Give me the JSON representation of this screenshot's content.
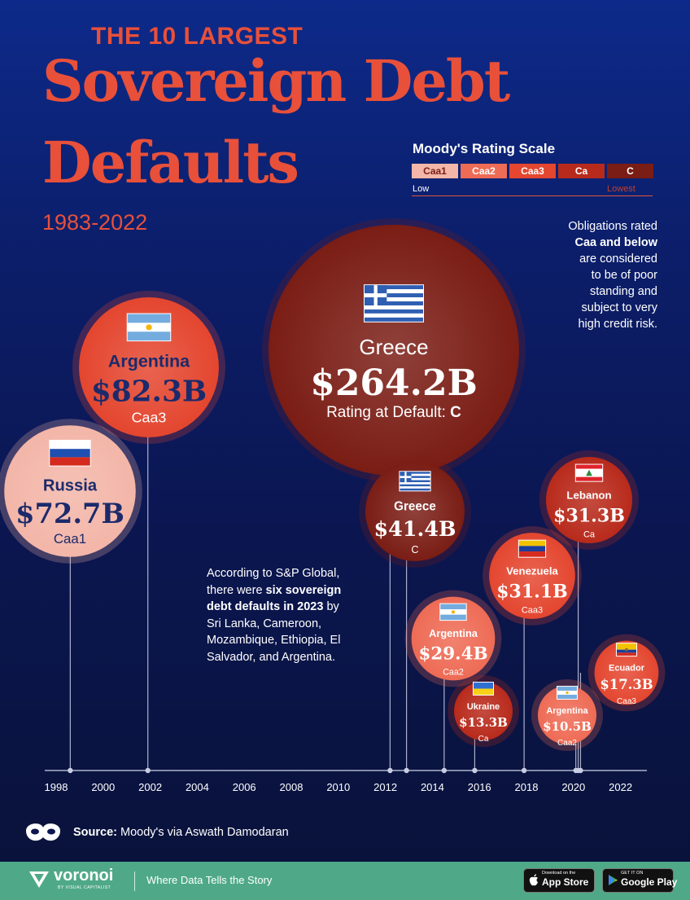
{
  "header": {
    "kicker": "THE 10 LARGEST",
    "title_line1": "Sovereign Debt",
    "title_line2": "Defaults",
    "date_range": "1983-2022"
  },
  "rating_scale": {
    "title": "Moody's Rating Scale",
    "ratings": [
      "Caa1",
      "Caa2",
      "Caa3",
      "Ca",
      "C"
    ],
    "low_label": "Low",
    "lowest_label": "Lowest"
  },
  "colors": {
    "background": "#0c1e6a",
    "accent": "#e8503a",
    "Caa1": "#f3b6a8",
    "Caa2": "#ee6b55",
    "Caa3": "#e4462f",
    "Ca": "#b82a1b",
    "C": "#7a1d15",
    "axis": "#ccd2ea",
    "footer": "#4fa989"
  },
  "notes": {
    "right": [
      "Obligations rated",
      "Caa and below",
      "are considered",
      "to be of poor",
      "standing and",
      "subject to very",
      "high credit risk."
    ],
    "left_part1": "According to S&P Global, there were ",
    "left_bold": "six sovereign debt defaults in 2023",
    "left_part2": " by Sri Lanka, Cameroon, Mozambique, Ethiopia, El Salvador, and Argentina."
  },
  "chart_data": {
    "type": "scatter",
    "title": "The 10 Largest Sovereign Debt Defaults",
    "subtitle": "1983-2022",
    "x_axis": {
      "ticks": [
        "1998",
        "2000",
        "2002",
        "2004",
        "2006",
        "2008",
        "2010",
        "2012",
        "2014",
        "2016",
        "2018",
        "2020",
        "2022"
      ],
      "range": [
        1997,
        2023
      ]
    },
    "points": [
      {
        "country": "Greece",
        "year": 2012.2,
        "value_label": "$264.2B",
        "value": 264.2,
        "rating": "C",
        "rating_text": "Rating at Default:",
        "flag": "greece"
      },
      {
        "country": "Argentina",
        "year": 2001.9,
        "value_label": "$82.3B",
        "value": 82.3,
        "rating": "Caa3",
        "flag": "argentina"
      },
      {
        "country": "Russia",
        "year": 1998.6,
        "value_label": "$72.7B",
        "value": 72.7,
        "rating": "Caa1",
        "flag": "russia"
      },
      {
        "country": "Greece",
        "year": 2012.9,
        "value_label": "$41.4B",
        "value": 41.4,
        "rating": "C",
        "flag": "greece"
      },
      {
        "country": "Lebanon",
        "year": 2020.2,
        "value_label": "$31.3B",
        "value": 31.3,
        "rating": "Ca",
        "flag": "lebanon"
      },
      {
        "country": "Venezuela",
        "year": 2017.9,
        "value_label": "$31.1B",
        "value": 31.1,
        "rating": "Caa3",
        "flag": "venezuela"
      },
      {
        "country": "Argentina",
        "year": 2014.5,
        "value_label": "$29.4B",
        "value": 29.4,
        "rating": "Caa2",
        "flag": "argentina"
      },
      {
        "country": "Ecuador",
        "year": 2020.3,
        "value_label": "$17.3B",
        "value": 17.3,
        "rating": "Caa3",
        "flag": "ecuador"
      },
      {
        "country": "Ukraine",
        "year": 2015.8,
        "value_label": "$13.3B",
        "value": 13.3,
        "rating": "Ca",
        "flag": "ukraine"
      },
      {
        "country": "Argentina",
        "year": 2020.1,
        "value_label": "$10.5B",
        "value": 10.5,
        "rating": "Caa2",
        "flag": "argentina"
      }
    ],
    "size_encoding": "bubble area proportional to debt (USD billions)",
    "color_encoding": "Moody's rating at default"
  },
  "source": {
    "label": "Source:",
    "text": "Moody's via Aswath Damodaran"
  },
  "footer": {
    "brand": "voronoi",
    "brand_sub": "BY VISUAL CAPITALIST",
    "tagline": "Where Data Tells the Story",
    "app_store_small": "Download on the",
    "app_store": "App Store",
    "google_play_small": "GET IT ON",
    "google_play": "Google Play"
  }
}
